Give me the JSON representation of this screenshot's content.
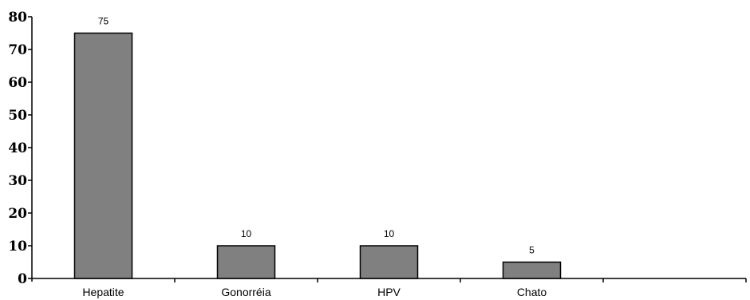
{
  "chart_data": {
    "type": "bar",
    "categories": [
      "Hepatite",
      "Gonorréia",
      "HPV",
      "Chato"
    ],
    "values": [
      75,
      10,
      10,
      5
    ],
    "data_labels": [
      "75",
      "10",
      "10",
      "5"
    ],
    "title": "",
    "xlabel": "",
    "ylabel": "",
    "ylim": [
      0,
      80
    ],
    "yticks": [
      0,
      10,
      20,
      30,
      40,
      50,
      60,
      70,
      80
    ],
    "grid": false,
    "legend": "none",
    "colors": {
      "bar_fill": "#808080",
      "bar_stroke": "#000000"
    }
  }
}
